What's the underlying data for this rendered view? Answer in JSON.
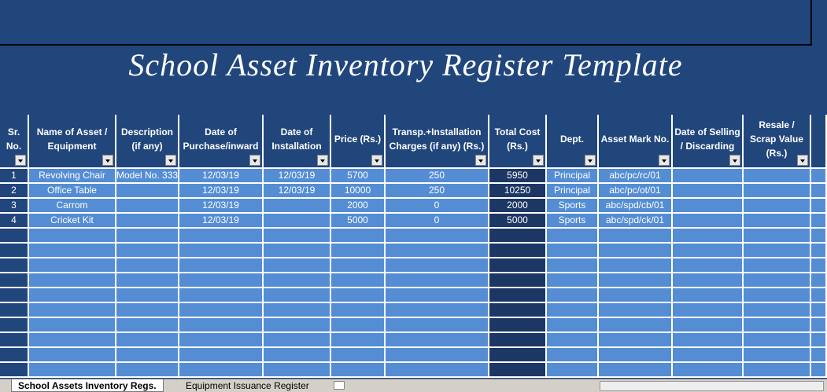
{
  "header": {
    "title": "School Asset Inventory Register Template"
  },
  "table": {
    "columns": [
      "Sr. No.",
      "Name of Asset / Equipment",
      "Description (if any)",
      "Date of Purchase/inward",
      "Date of Installation",
      "Price  (Rs.)",
      "Transp.+Installation Charges (if any) (Rs.)",
      "Total Cost (Rs.)",
      "Dept.",
      "Asset Mark No.",
      "Date of Selling / Discarding",
      "Resale / Scrap Value (Rs.)"
    ],
    "rows": [
      [
        "1",
        "Revolving Chair",
        "Model No. 333",
        "12/03/19",
        "12/03/19",
        "5700",
        "250",
        "5950",
        "Principal",
        "abc/pc/rc/01",
        null,
        null
      ],
      [
        "2",
        "Office Table",
        null,
        "12/03/19",
        "12/03/19",
        "10000",
        "250",
        "10250",
        "Principal",
        "abc/pc/ot/01",
        null,
        null
      ],
      [
        "3",
        "Carrom",
        null,
        "12/03/19",
        null,
        "2000",
        "0",
        "2000",
        "Sports",
        "abc/spd/cb/01",
        null,
        null
      ],
      [
        "4",
        "Cricket Kit",
        null,
        "12/03/19",
        null,
        "5000",
        "0",
        "5000",
        "Sports",
        "abc/spd/ck/01",
        null,
        null
      ]
    ]
  },
  "tabs": [
    "School Assets Inventory Regs.",
    "Equipment Issuance Register"
  ]
}
